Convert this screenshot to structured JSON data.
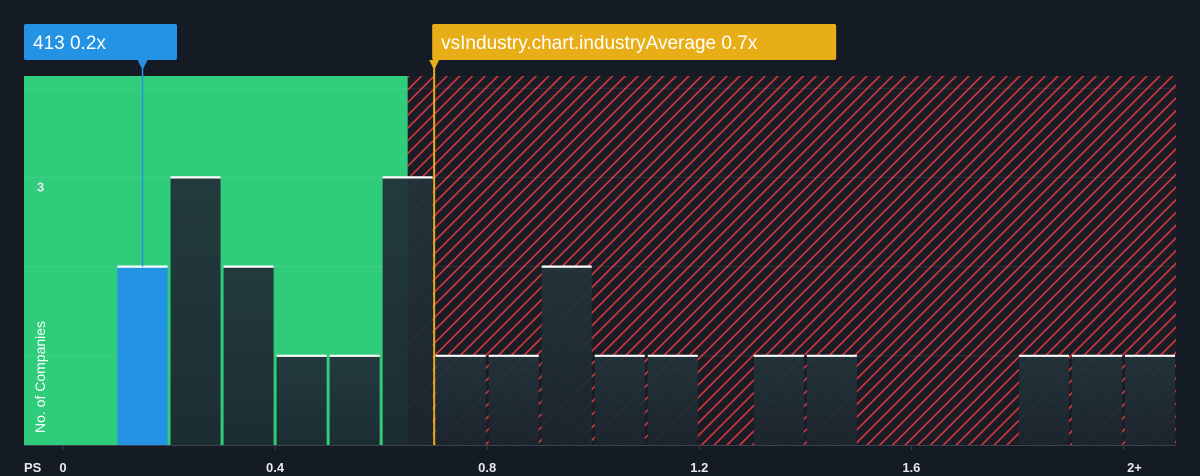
{
  "chart_data": {
    "type": "bar",
    "x_axis_label": "PS",
    "y_axis_label": "No. of Companies",
    "x_ticks": [
      "0",
      "0.4",
      "0.8",
      "1.2",
      "1.6",
      "2+"
    ],
    "y_ticks": [
      "3"
    ],
    "bin_width": 0.1,
    "bins": [
      {
        "x": 0.1,
        "value": 2
      },
      {
        "x": 0.2,
        "value": 3
      },
      {
        "x": 0.3,
        "value": 2
      },
      {
        "x": 0.4,
        "value": 1
      },
      {
        "x": 0.5,
        "value": 1
      },
      {
        "x": 0.6,
        "value": 3
      },
      {
        "x": 0.7,
        "value": 1
      },
      {
        "x": 0.8,
        "value": 1
      },
      {
        "x": 0.9,
        "value": 2
      },
      {
        "x": 1.0,
        "value": 1
      },
      {
        "x": 1.1,
        "value": 1
      },
      {
        "x": 1.3,
        "value": 1
      },
      {
        "x": 1.4,
        "value": 1
      },
      {
        "x": 1.8,
        "value": 1
      },
      {
        "x": 1.9,
        "value": 1
      },
      {
        "x": 2.0,
        "value": 1
      }
    ],
    "highlight": {
      "label": "413 0.2x",
      "value": 0.2,
      "bin_x": 0.1
    },
    "industry_average": {
      "label": "vsIndustry.chart.industryAverage 0.7x",
      "value": 0.7
    },
    "fair_zone_end": 0.65,
    "xlim": [
      0,
      2.05
    ],
    "ylim": [
      0,
      4
    ],
    "colors": {
      "background": "#151b24",
      "fair_zone": "#2fcc7b",
      "highlight": "#2493e4",
      "average": "#e8ae17",
      "expensive_hatch": "#d6383c",
      "bar_dark": "#1e2a2f",
      "bar_cap": "#ffffff",
      "grid": "#2b3440"
    }
  }
}
